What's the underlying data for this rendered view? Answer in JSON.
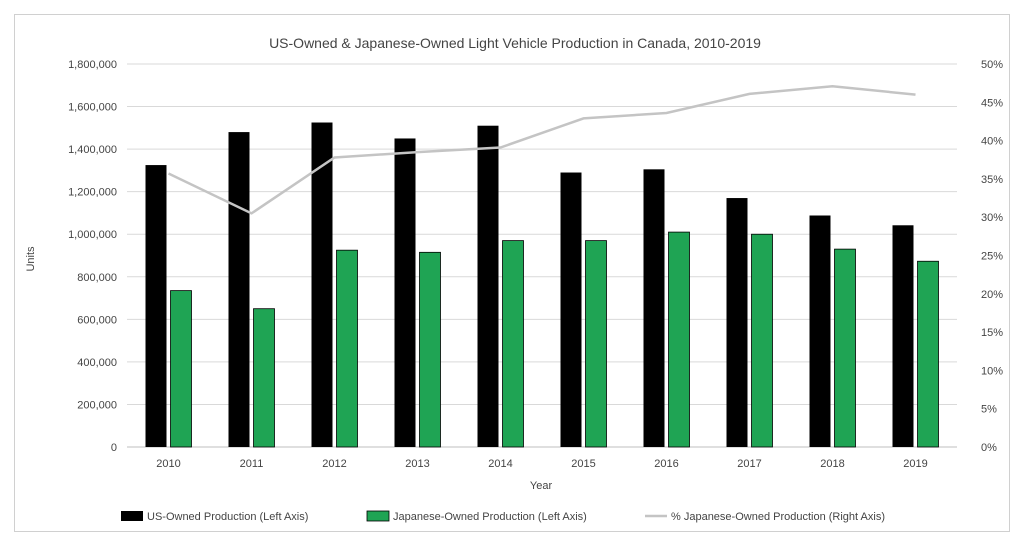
{
  "chart_data": {
    "type": "bar",
    "title": "US-Owned & Japanese-Owned  Light Vehicle Production in Canada, 2010-2019",
    "xlabel": "Year",
    "ylabel": "Units",
    "categories": [
      "2010",
      "2011",
      "2012",
      "2013",
      "2014",
      "2015",
      "2016",
      "2017",
      "2018",
      "2019"
    ],
    "series": [
      {
        "name": "US-Owned Production (Left Axis)",
        "type": "bar",
        "axis": "left",
        "color": "#000000",
        "values": [
          1325000,
          1480000,
          1525000,
          1450000,
          1510000,
          1290000,
          1305000,
          1170000,
          1088000,
          1042000
        ]
      },
      {
        "name": "Japanese-Owned Production (Left Axis)",
        "type": "bar",
        "axis": "left",
        "color": "#1fa454",
        "values": [
          735000,
          650000,
          925000,
          915000,
          970000,
          970000,
          1010000,
          1000000,
          930000,
          873000
        ]
      },
      {
        "name": "% Japanese-Owned Production (Right Axis)",
        "type": "line",
        "axis": "right",
        "color": "#c4c4c4",
        "values": [
          35.7,
          30.5,
          37.8,
          38.5,
          39.1,
          42.9,
          43.6,
          46.1,
          47.1,
          46.0
        ]
      }
    ],
    "ylim": [
      0,
      1800000
    ],
    "y_ticks": [
      "0",
      "200,000",
      "400,000",
      "600,000",
      "800,000",
      "1,000,000",
      "1,200,000",
      "1,400,000",
      "1,600,000",
      "1,800,000"
    ],
    "y2lim": [
      0,
      50
    ],
    "y2_ticks": [
      "0%",
      "5%",
      "10%",
      "15%",
      "20%",
      "25%",
      "30%",
      "35%",
      "40%",
      "45%",
      "50%"
    ],
    "grid": true,
    "legend_position": "bottom"
  }
}
